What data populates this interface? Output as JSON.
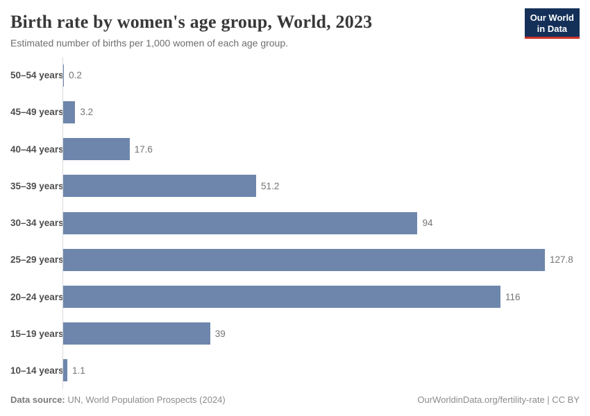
{
  "header": {
    "title": "Birth rate by women's age group, World, 2023",
    "subtitle": "Estimated number of births per 1,000 women of each age group.",
    "logo_line1": "Our World",
    "logo_line2": "in Data"
  },
  "chart_data": {
    "type": "bar",
    "orientation": "horizontal",
    "title": "Birth rate by women's age group, World, 2023",
    "subtitle": "Estimated number of births per 1,000 women of each age group.",
    "categories": [
      "50–54 years",
      "45–49 years",
      "40–44 years",
      "35–39 years",
      "30–34 years",
      "25–29 years",
      "20–24 years",
      "15–19 years",
      "10–14 years"
    ],
    "values": [
      0.2,
      3.2,
      17.6,
      51.2,
      94,
      127.8,
      116,
      39,
      1.1
    ],
    "value_labels": [
      "0.2",
      "3.2",
      "17.6",
      "51.2",
      "94",
      "127.8",
      "116",
      "39",
      "1.1"
    ],
    "xlabel": "",
    "ylabel": "",
    "xlim": [
      0,
      130
    ],
    "grid": false,
    "legend": false,
    "bar_color": "#6e86ac",
    "axis_line_color": "#d9d9d9"
  },
  "footer": {
    "source_label": "Data source:",
    "source_text": "UN, World Population Prospects (2024)",
    "link_text": "OurWorldinData.org/fertility-rate | CC BY"
  }
}
